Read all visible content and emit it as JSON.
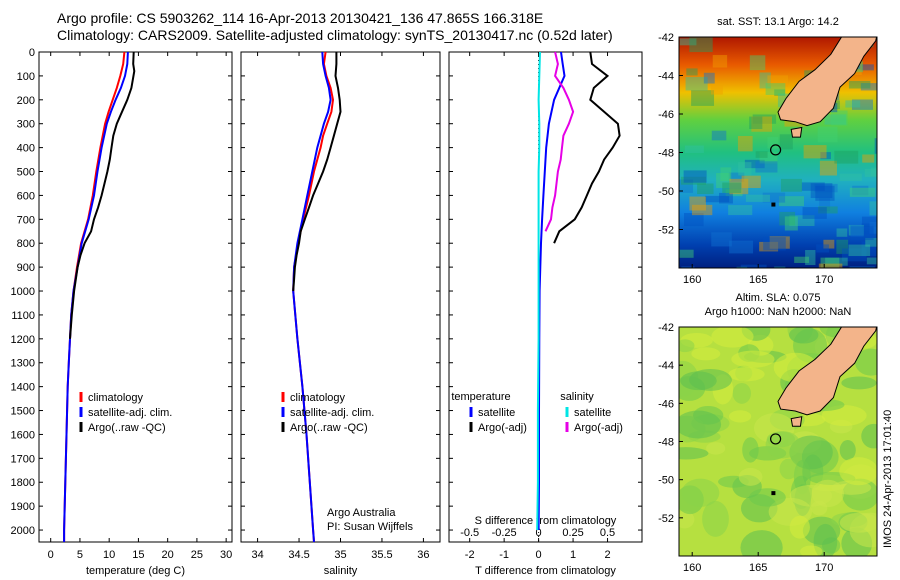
{
  "header": {
    "line1": "Argo profile: CS 5903262_114 16-Apr-2013 20130421_136 47.865S 166.318E",
    "line2": "Climatology: CARS2009. Satellite-adjusted climatology: synTS_20130417.nc (0.52d later)"
  },
  "colors": {
    "climatology": "#ff0000",
    "satellite": "#0000ff",
    "argo": "#000000",
    "sal_sat": "#00e5e5",
    "sal_argo": "#e600e6"
  },
  "chart_data": [
    {
      "type": "line",
      "xlabel": "temperature (deg C)",
      "xlim": [
        -2,
        31
      ],
      "xticks": [
        0,
        5,
        10,
        15,
        20,
        25,
        30
      ],
      "ylim": [
        0,
        2050
      ],
      "yticks": [
        0,
        100,
        200,
        300,
        400,
        500,
        600,
        700,
        800,
        900,
        1000,
        1100,
        1200,
        1300,
        1400,
        1500,
        1600,
        1700,
        1800,
        1900,
        2000
      ],
      "legend": [
        "climatology",
        "satellite-adj. clim.",
        "Argo(..raw -QC)"
      ],
      "series": [
        {
          "name": "climatology",
          "color": "#ff0000",
          "y": [
            0,
            50,
            100,
            150,
            200,
            250,
            300,
            400,
            500,
            600,
            700,
            800,
            900,
            1000,
            1100,
            1200,
            1300,
            1400,
            1500,
            1600,
            1700,
            1800,
            1900,
            2000,
            2050
          ],
          "x": [
            12.6,
            12.4,
            11.9,
            11.3,
            10.6,
            9.9,
            9.3,
            8.5,
            7.8,
            7.2,
            6.4,
            5.2,
            4.5,
            3.9,
            3.5,
            3.3,
            3.1,
            2.9,
            2.8,
            2.7,
            2.6,
            2.5,
            2.4,
            2.3,
            2.3
          ]
        },
        {
          "name": "satellite-adj. clim.",
          "color": "#0000ff",
          "y": [
            0,
            50,
            100,
            150,
            200,
            250,
            300,
            400,
            500,
            600,
            700,
            800,
            900,
            1000,
            1100,
            1200,
            1300,
            1400,
            1500,
            1600,
            1700,
            1800,
            1900,
            2000,
            2050
          ],
          "x": [
            13.2,
            13.1,
            12.7,
            12.0,
            11.1,
            10.3,
            9.6,
            8.7,
            8.0,
            7.4,
            6.5,
            5.3,
            4.6,
            3.9,
            3.5,
            3.3,
            3.1,
            2.9,
            2.8,
            2.7,
            2.6,
            2.5,
            2.4,
            2.3,
            2.3
          ]
        },
        {
          "name": "Argo(..raw -QC)",
          "color": "#000000",
          "y": [
            0,
            50,
            80,
            150,
            200,
            250,
            300,
            350,
            400,
            450,
            500,
            550,
            600,
            650,
            700,
            750,
            800,
            850,
            900,
            1000,
            1100,
            1200
          ],
          "x": [
            14.2,
            14.1,
            14.3,
            13.8,
            13.1,
            12.2,
            11.3,
            10.7,
            10.4,
            10.1,
            9.7,
            9.2,
            8.7,
            8.1,
            7.4,
            6.9,
            5.8,
            5.1,
            4.6,
            4.0,
            3.6,
            3.3
          ]
        }
      ]
    },
    {
      "type": "line",
      "xlabel": "salinity",
      "xlim": [
        33.8,
        36.2
      ],
      "xticks": [
        34,
        34.5,
        35,
        35.5,
        36
      ],
      "ylim": [
        0,
        2050
      ],
      "legend": [
        "climatology",
        "satellite-adj. clim.",
        "Argo(..raw -QC)"
      ],
      "annotation": [
        "Argo Australia",
        "PI: Susan Wijffels"
      ],
      "series": [
        {
          "name": "climatology",
          "color": "#ff0000",
          "y": [
            0,
            50,
            100,
            150,
            200,
            250,
            300,
            350,
            400,
            500,
            600,
            700,
            800,
            900,
            1000,
            1200,
            1400,
            1600,
            1800,
            2000,
            2050
          ],
          "x": [
            34.82,
            34.8,
            34.83,
            34.88,
            34.91,
            34.89,
            34.84,
            34.79,
            34.76,
            34.68,
            34.62,
            34.55,
            34.49,
            34.44,
            34.43,
            34.48,
            34.54,
            34.59,
            34.63,
            34.67,
            34.68
          ]
        },
        {
          "name": "satellite-adj. clim.",
          "color": "#0000ff",
          "y": [
            0,
            50,
            100,
            150,
            200,
            250,
            300,
            350,
            400,
            500,
            600,
            700,
            800,
            900,
            1000,
            1200,
            1400,
            1600,
            1800,
            2000,
            2050
          ],
          "x": [
            34.78,
            34.79,
            34.82,
            34.86,
            34.88,
            34.85,
            34.8,
            34.76,
            34.72,
            34.66,
            34.6,
            34.54,
            34.48,
            34.44,
            34.43,
            34.48,
            34.54,
            34.59,
            34.63,
            34.67,
            34.68
          ]
        },
        {
          "name": "Argo(..raw -QC)",
          "color": "#000000",
          "y": [
            0,
            50,
            100,
            150,
            200,
            250,
            300,
            350,
            400,
            450,
            500,
            550,
            600,
            650,
            700,
            750,
            800,
            850,
            900,
            950,
            1000
          ],
          "x": [
            34.95,
            34.95,
            34.94,
            34.97,
            34.99,
            35.0,
            34.96,
            34.92,
            34.88,
            34.84,
            34.79,
            34.73,
            34.67,
            34.62,
            34.57,
            34.52,
            34.5,
            34.47,
            34.45,
            34.44,
            34.43
          ]
        }
      ]
    },
    {
      "type": "line",
      "xlabel": "T difference from climatology",
      "xlabel_top": "S difference from climatology",
      "xlim": [
        -2.6,
        3.0
      ],
      "xticks": [
        -2,
        -1,
        0,
        1,
        2
      ],
      "xticks_top_labels": [
        "-0.5",
        "-0.25",
        "0",
        "0.25",
        "0.5"
      ],
      "ylim": [
        0,
        2050
      ],
      "legend_groups": [
        {
          "title": "temperature",
          "items": [
            "satellite",
            "Argo(-adj)"
          ]
        },
        {
          "title": "salinity",
          "items": [
            "satellite",
            "Argo(-adj)"
          ]
        }
      ],
      "series": [
        {
          "name": "temperature satellite",
          "color": "#0000ff",
          "y": [
            0,
            50,
            100,
            200,
            300,
            400,
            500,
            600,
            700,
            800,
            900,
            1000,
            1200,
            1500,
            1800,
            2000
          ],
          "x": [
            0.65,
            0.7,
            0.75,
            0.45,
            0.3,
            0.22,
            0.18,
            0.14,
            0.1,
            0.07,
            0.05,
            0.03,
            0.02,
            0.01,
            0.01,
            0.0
          ]
        },
        {
          "name": "temperature Argo(-adj)",
          "color": "#000000",
          "y": [
            0,
            50,
            100,
            150,
            200,
            250,
            300,
            350,
            400,
            450,
            500,
            550,
            600,
            650,
            700,
            750,
            800
          ],
          "x": [
            1.5,
            1.55,
            2.0,
            1.6,
            1.5,
            1.9,
            2.3,
            2.35,
            2.15,
            1.9,
            1.75,
            1.55,
            1.4,
            1.25,
            1.05,
            0.6,
            0.45
          ]
        },
        {
          "name": "salinity satellite",
          "color": "#00e5e5",
          "y": [
            0,
            100,
            200,
            300,
            400,
            500,
            600,
            700,
            800,
            1000,
            1200,
            1500,
            1800,
            2000
          ],
          "x": [
            0.01,
            0.005,
            0.0,
            0.005,
            0.005,
            0.0,
            0.0,
            0.0,
            0.0,
            0.0,
            0.0,
            -0.005,
            -0.005,
            -0.01
          ]
        },
        {
          "name": "salinity Argo(-adj)",
          "color": "#e600e6",
          "y": [
            0,
            50,
            100,
            150,
            200,
            250,
            300,
            350,
            400,
            450,
            500,
            550,
            600,
            650,
            700,
            750
          ],
          "x": [
            0.12,
            0.14,
            0.12,
            0.18,
            0.22,
            0.25,
            0.22,
            0.18,
            0.17,
            0.16,
            0.14,
            0.13,
            0.12,
            0.1,
            0.09,
            0.05
          ]
        }
      ]
    },
    {
      "type": "heatmap",
      "title": "sat. SST: 13.1  Argo: 14.2",
      "xlim": [
        159,
        174
      ],
      "ylim": [
        -54,
        -42
      ],
      "xticks": [
        160,
        165,
        170
      ],
      "yticks": [
        -42,
        -44,
        -46,
        -48,
        -50,
        -52
      ],
      "marker": {
        "lon": 166.318,
        "lat": -47.865
      }
    },
    {
      "type": "heatmap",
      "title_lines": [
        "Altim. SLA: 0.075",
        "Argo h1000: NaN h2000: NaN"
      ],
      "xlim": [
        159,
        174
      ],
      "ylim": [
        -54,
        -42
      ],
      "xticks": [
        160,
        165,
        170
      ],
      "yticks": [
        -42,
        -44,
        -46,
        -48,
        -50,
        -52
      ],
      "marker": {
        "lon": 166.318,
        "lat": -47.865
      }
    }
  ],
  "footer": {
    "stamp": "IMOS 24-Apr-2013 17:01:40"
  }
}
